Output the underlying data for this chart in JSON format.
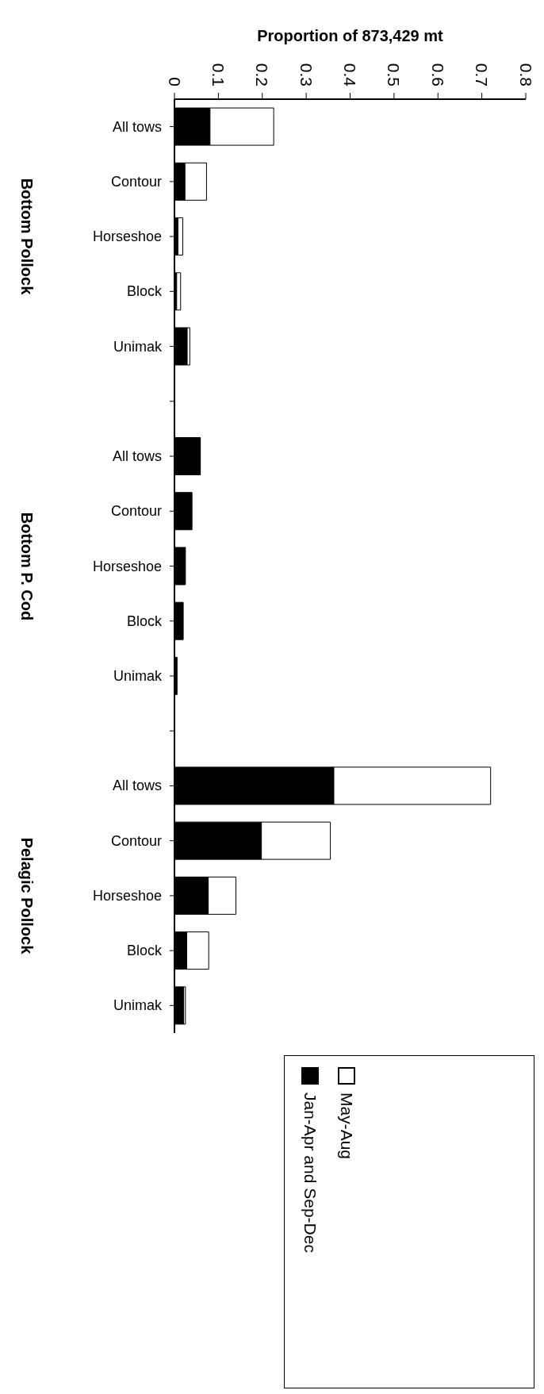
{
  "chart_data": {
    "type": "bar",
    "orientation": "horizontal",
    "stacked": true,
    "xlabel": "Proportion of 873,429 mt",
    "categories": [
      "All tows",
      "Contour",
      "Horseshoe",
      "Block",
      "Unimak",
      null,
      "All tows",
      "Contour",
      "Horseshoe",
      "Block",
      "Unimak",
      null,
      "All tows",
      "Contour",
      "Horseshoe",
      "Block",
      "Unimak"
    ],
    "series": [
      {
        "name": "Jan-Apr and Sep-Dec",
        "color": "#000000",
        "values": [
          0.081,
          0.024,
          0.008,
          0.005,
          0.029,
          null,
          0.059,
          0.04,
          0.025,
          0.02,
          0.006,
          null,
          0.363,
          0.198,
          0.077,
          0.028,
          0.021
        ]
      },
      {
        "name": "May-Aug",
        "color": "#ffffff",
        "values": [
          0.145,
          0.049,
          0.011,
          0.009,
          0.006,
          null,
          0,
          0,
          0,
          0,
          0,
          null,
          0.357,
          0.157,
          0.063,
          0.05,
          0.004
        ]
      }
    ],
    "xlim": [
      0,
      0.8
    ],
    "xticks": [
      0,
      0.1,
      0.2,
      0.3,
      0.4,
      0.5,
      0.6,
      0.7,
      0.8
    ],
    "annotations": [
      "Bottom Pollock",
      "Bottom P. Cod",
      "Pelagic Pollock"
    ],
    "grid": false,
    "legend": "bottom"
  }
}
